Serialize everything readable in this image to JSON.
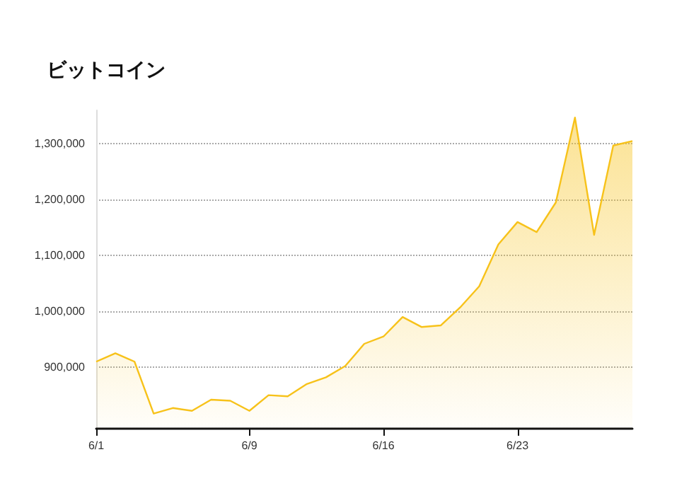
{
  "chart_data": {
    "type": "area",
    "title": "ビットコイン",
    "x": [
      "--06-01",
      "--06-02",
      "--06-03",
      "--06-04",
      "--06-05",
      "--06-06",
      "--06-07",
      "--06-08",
      "--06-09",
      "--06-10",
      "--06-11",
      "--06-12",
      "--06-13",
      "--06-14",
      "--06-15",
      "--06-16",
      "--06-17",
      "--06-18",
      "--06-19",
      "--06-20",
      "--06-21",
      "--06-22",
      "--06-23",
      "--06-24",
      "--06-25",
      "--06-26",
      "--06-27",
      "--06-28",
      "--06-29"
    ],
    "series": [
      {
        "color": "#f7c21a",
        "values": [
          910000,
          925000,
          910000,
          817000,
          827000,
          822000,
          842000,
          840000,
          822000,
          850000,
          848000,
          870000,
          882000,
          902000,
          942000,
          955000,
          990000,
          972000,
          975000,
          1007000,
          1045000,
          1120000,
          1160000,
          1142000,
          1195000,
          1347000,
          1137000,
          1297000,
          1305000
        ]
      }
    ],
    "xlim": [
      "--06-01",
      "--06-29"
    ],
    "xticks": [
      {
        "value": "--06-01",
        "label": "6/1"
      },
      {
        "value": "--06-09",
        "label": "6/9"
      },
      {
        "value": "--06-16",
        "label": "6/16"
      },
      {
        "value": "--06-23",
        "label": "6/23"
      }
    ],
    "ylim": [
      790000,
      1360000
    ],
    "yticks": [
      {
        "value": 900000,
        "label": "900,000"
      },
      {
        "value": 1000000,
        "label": "1,000,000"
      },
      {
        "value": 1100000,
        "label": "1,100,000"
      },
      {
        "value": 1200000,
        "label": "1,200,000"
      },
      {
        "value": 1300000,
        "label": "1,300,000"
      }
    ],
    "grid": "y",
    "marker": "none",
    "line_style": "solid"
  }
}
